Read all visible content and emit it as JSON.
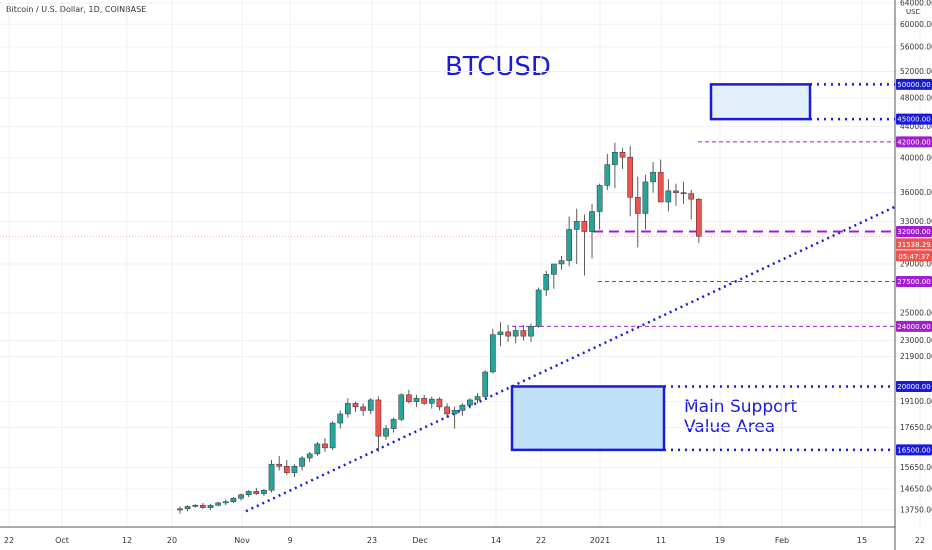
{
  "header": {
    "ticker": "Bitcoin / U.S. Dollar, 1D, COINBASE",
    "currency": "USD"
  },
  "annotations": {
    "title": "BTCUSD",
    "support_line1": "Main Support",
    "support_line2": "Value Area"
  },
  "colors": {
    "up": "#26a69a",
    "down": "#ef5350",
    "annotation_blue": "#1a1adb",
    "level_purple": "#a020d0",
    "price_badge": "#ef5350"
  },
  "chart_data": {
    "type": "candlestick",
    "y_scale": "log",
    "ylim": [
      13000,
      64000
    ],
    "y_ticks": [
      "64000.00",
      "60000.00",
      "56000.00",
      "52000.00",
      "48000.00",
      "44000.00",
      "40000.00",
      "36000.00",
      "33000.00",
      "29000.00",
      "25000.00",
      "23000.00",
      "21900.00",
      "19100.00",
      "17650.00",
      "15650.00",
      "14650.00",
      "13750.00"
    ],
    "x_ticks": [
      "22",
      "Oct",
      "12",
      "20",
      "Nov",
      "9",
      "23",
      "Dec",
      "14",
      "22",
      "2021",
      "11",
      "19",
      "Feb",
      "15",
      "22"
    ],
    "candles_ohlc": [
      [
        13750,
        13900,
        13600,
        13800
      ],
      [
        13800,
        13950,
        13700,
        13900
      ],
      [
        13900,
        14000,
        13850,
        13950
      ],
      [
        13950,
        14050,
        13800,
        13850
      ],
      [
        13850,
        14000,
        13750,
        13950
      ],
      [
        13950,
        14100,
        13900,
        14050
      ],
      [
        14050,
        14200,
        13950,
        14100
      ],
      [
        14100,
        14300,
        14050,
        14250
      ],
      [
        14250,
        14450,
        14150,
        14400
      ],
      [
        14400,
        14600,
        14300,
        14550
      ],
      [
        14550,
        14700,
        14400,
        14450
      ],
      [
        14450,
        14650,
        14350,
        14600
      ],
      [
        14600,
        16000,
        14500,
        15800
      ],
      [
        15800,
        16200,
        15500,
        15700
      ],
      [
        15700,
        16000,
        15300,
        15400
      ],
      [
        15400,
        15800,
        15200,
        15700
      ],
      [
        15700,
        16200,
        15500,
        16100
      ],
      [
        16100,
        16400,
        15900,
        16300
      ],
      [
        16300,
        16900,
        16200,
        16800
      ],
      [
        16800,
        17100,
        16400,
        16600
      ],
      [
        16600,
        18000,
        16500,
        17900
      ],
      [
        17900,
        18600,
        17600,
        18400
      ],
      [
        18400,
        19300,
        18200,
        19000
      ],
      [
        19000,
        19100,
        18500,
        18800
      ],
      [
        18800,
        19000,
        18300,
        18600
      ],
      [
        18600,
        19300,
        18400,
        19200
      ],
      [
        19200,
        19400,
        16400,
        17200
      ],
      [
        17200,
        17800,
        17000,
        17600
      ],
      [
        17600,
        18200,
        17400,
        18100
      ],
      [
        18100,
        19600,
        18000,
        19500
      ],
      [
        19500,
        19800,
        19000,
        19100
      ],
      [
        19100,
        19500,
        18800,
        19300
      ],
      [
        19300,
        19500,
        18900,
        19000
      ],
      [
        19000,
        19400,
        18700,
        19250
      ],
      [
        19250,
        19350,
        18600,
        18800
      ],
      [
        18800,
        19000,
        18200,
        18400
      ],
      [
        18400,
        18800,
        17600,
        18600
      ],
      [
        18600,
        19000,
        18300,
        18900
      ],
      [
        18900,
        19300,
        18700,
        19200
      ],
      [
        19200,
        19600,
        19000,
        19400
      ],
      [
        19400,
        21000,
        19300,
        20900
      ],
      [
        20900,
        23800,
        20800,
        23400
      ],
      [
        23400,
        24300,
        22600,
        23600
      ],
      [
        23600,
        24100,
        22900,
        23300
      ],
      [
        23300,
        24000,
        22800,
        23700
      ],
      [
        23700,
        24100,
        23000,
        23300
      ],
      [
        23300,
        24200,
        22900,
        24000
      ],
      [
        24000,
        27000,
        23900,
        26800
      ],
      [
        26800,
        28400,
        26300,
        28100
      ],
      [
        28100,
        29000,
        26900,
        29000
      ],
      [
        29000,
        29700,
        28500,
        29300
      ],
      [
        29300,
        33500,
        28800,
        32200
      ],
      [
        32200,
        34300,
        29000,
        33000
      ],
      [
        33000,
        33700,
        28000,
        32000
      ],
      [
        32000,
        34800,
        29500,
        34000
      ],
      [
        34000,
        37000,
        32200,
        36800
      ],
      [
        36800,
        40500,
        36300,
        39200
      ],
      [
        39200,
        41900,
        36500,
        40700
      ],
      [
        40700,
        41200,
        38700,
        40100
      ],
      [
        40100,
        41500,
        33500,
        35500
      ],
      [
        35500,
        37800,
        30500,
        33800
      ],
      [
        33800,
        38000,
        32200,
        37200
      ],
      [
        37200,
        39500,
        36000,
        38300
      ],
      [
        38300,
        39800,
        35000,
        35000
      ],
      [
        35000,
        37500,
        34000,
        36200
      ],
      [
        36200,
        37000,
        34600,
        36000
      ],
      [
        36000,
        37200,
        34800,
        35900
      ],
      [
        35900,
        36300,
        33200,
        35300
      ],
      [
        35300,
        35400,
        30900,
        31540
      ]
    ],
    "last_price": "31538.29",
    "countdown": "05:47:37",
    "levels": [
      {
        "value": 50000,
        "label": "50000.00",
        "style": "dotted-blue"
      },
      {
        "value": 45000,
        "label": "45000.00",
        "style": "dotted-blue"
      },
      {
        "value": 42000,
        "label": "42000.00",
        "style": "dashed-purple"
      },
      {
        "value": 32000,
        "label": "32000.00",
        "style": "dashed-purple"
      },
      {
        "value": 27500,
        "label": "27500.00",
        "style": "dashed-purple"
      },
      {
        "value": 24000,
        "label": "24000.00",
        "style": "dashed-purple"
      },
      {
        "value": 20000,
        "label": "20000.00",
        "style": "dotted-blue"
      },
      {
        "value": 16500,
        "label": "16500.00",
        "style": "dotted-blue"
      }
    ],
    "zones": [
      {
        "name": "target-zone",
        "low": 45000,
        "high": 50000
      },
      {
        "name": "main-support-value-area",
        "low": 16500,
        "high": 20000
      }
    ],
    "trendline": {
      "from_price": 13700,
      "to_price": 34500
    }
  }
}
